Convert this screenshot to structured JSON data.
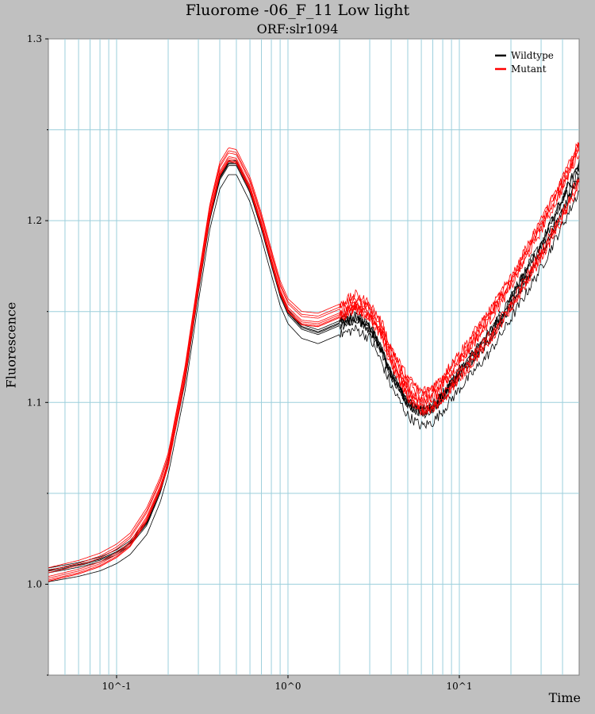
{
  "chart_data": {
    "type": "line",
    "title": "Fluorome -06_F_11 Low light",
    "subtitle": "ORF:slr1094",
    "xlabel": "Time",
    "ylabel": "Fluorescence",
    "xscale": "log",
    "xlim": [
      0.04,
      50
    ],
    "ylim": [
      0.95,
      1.3
    ],
    "xticks": [
      0.1,
      1,
      10
    ],
    "xtick_labels": [
      "10^-1",
      "10^0",
      "10^1"
    ],
    "yticks": [
      1.0,
      1.1,
      1.2,
      1.3
    ],
    "ytick_labels": [
      "1.0",
      "1.1",
      "1.2",
      "1.3"
    ],
    "grid": true,
    "legend_position": "top-right",
    "colors": {
      "Wildtype": "#000000",
      "Mutant": "#ff0000"
    },
    "series": [
      {
        "name": "Wildtype",
        "x": [
          0.04,
          0.06,
          0.08,
          0.1,
          0.12,
          0.15,
          0.18,
          0.2,
          0.25,
          0.3,
          0.35,
          0.4,
          0.45,
          0.5,
          0.6,
          0.7,
          0.8,
          0.9,
          1.0,
          1.2,
          1.5,
          2.0,
          2.5,
          3.0,
          3.5,
          4.0,
          5.0,
          6.0,
          7.0,
          8.0,
          10,
          15,
          20,
          30,
          40,
          50
        ],
        "y": [
          1.006,
          1.009,
          1.012,
          1.016,
          1.021,
          1.032,
          1.05,
          1.065,
          1.11,
          1.16,
          1.2,
          1.222,
          1.23,
          1.23,
          1.215,
          1.195,
          1.175,
          1.158,
          1.148,
          1.14,
          1.137,
          1.142,
          1.145,
          1.14,
          1.128,
          1.115,
          1.1,
          1.095,
          1.098,
          1.105,
          1.118,
          1.14,
          1.16,
          1.19,
          1.215,
          1.235
        ]
      },
      {
        "name": "Mutant",
        "x": [
          0.04,
          0.06,
          0.08,
          0.1,
          0.12,
          0.15,
          0.18,
          0.2,
          0.25,
          0.3,
          0.35,
          0.4,
          0.45,
          0.5,
          0.6,
          0.7,
          0.8,
          0.9,
          1.0,
          1.2,
          1.5,
          2.0,
          2.5,
          3.0,
          3.5,
          4.0,
          5.0,
          6.0,
          7.0,
          8.0,
          10,
          15,
          20,
          30,
          40,
          50
        ],
        "y": [
          1.005,
          1.009,
          1.013,
          1.018,
          1.024,
          1.038,
          1.055,
          1.068,
          1.115,
          1.165,
          1.205,
          1.228,
          1.236,
          1.235,
          1.22,
          1.2,
          1.18,
          1.163,
          1.153,
          1.146,
          1.145,
          1.15,
          1.155,
          1.15,
          1.14,
          1.125,
          1.108,
          1.1,
          1.102,
          1.108,
          1.12,
          1.142,
          1.16,
          1.19,
          1.212,
          1.232
        ]
      }
    ]
  }
}
